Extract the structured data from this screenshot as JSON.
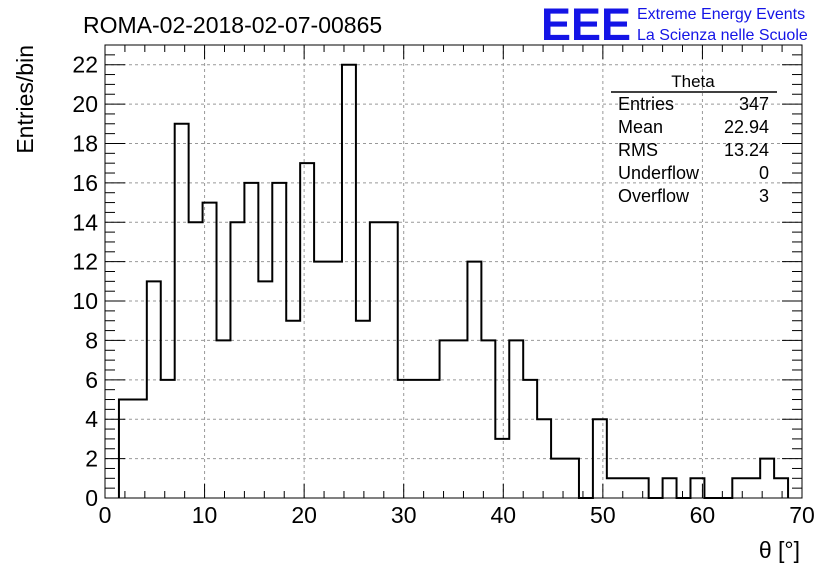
{
  "header": {
    "title": "ROMA-02-2018-02-07-00865",
    "logo_text": "EEE",
    "org_line1": "Extreme Energy Events",
    "org_line2": "La Scienza nelle Scuole",
    "logo_color": "#1414e6"
  },
  "stats": {
    "name": "Theta",
    "rows": [
      {
        "label": "Entries",
        "value": "347"
      },
      {
        "label": "Mean",
        "value": "22.94"
      },
      {
        "label": "RMS",
        "value": "13.24"
      },
      {
        "label": "Underflow",
        "value": "0"
      },
      {
        "label": "Overflow",
        "value": "3"
      }
    ]
  },
  "chart_data": {
    "type": "histogram",
    "title": "ROMA-02-2018-02-07-00865",
    "xlabel": "θ [°]",
    "ylabel": "Entries/bin",
    "xlim": [
      0,
      70
    ],
    "ylim": [
      0,
      23
    ],
    "grid": true,
    "x_ticks": [
      0,
      10,
      20,
      30,
      40,
      50,
      60,
      70
    ],
    "y_ticks": [
      0,
      2,
      4,
      6,
      8,
      10,
      12,
      14,
      16,
      18,
      20,
      22
    ],
    "bin_width": 1.4,
    "bins_start": 1.4,
    "values": [
      5,
      5,
      11,
      6,
      19,
      14,
      15,
      8,
      14,
      16,
      11,
      16,
      9,
      17,
      12,
      12,
      22,
      9,
      14,
      14,
      6,
      6,
      6,
      8,
      8,
      12,
      8,
      3,
      8,
      6,
      4,
      2,
      2,
      0,
      4,
      1,
      1,
      1,
      0,
      1,
      0,
      1,
      0,
      0,
      1,
      1,
      2,
      1
    ]
  }
}
